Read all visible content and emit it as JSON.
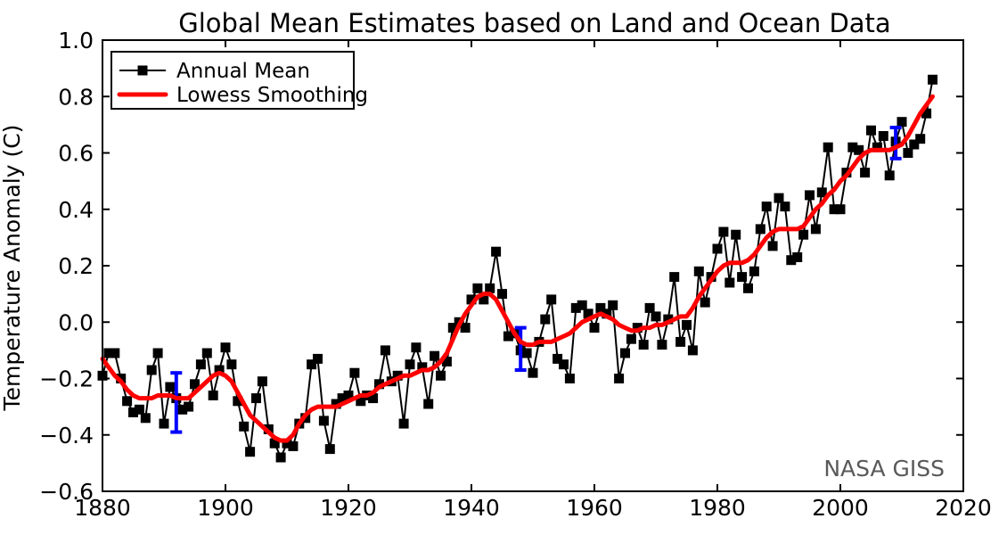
{
  "title": "Global Mean Estimates based on Land and Ocean Data",
  "ylabel": "Temperature Anomaly (C)",
  "watermark": "NASA GISS",
  "legend": {
    "position": "upper left",
    "items": [
      {
        "label": "Annual Mean",
        "swatch": "black line with square marker",
        "color": "#000000"
      },
      {
        "label": "Lowess Smoothing",
        "swatch": "thick red line",
        "color": "#ff0000"
      }
    ]
  },
  "colors": {
    "annual": "#000000",
    "lowess": "#ff0000",
    "error_bar": "#0000ff",
    "watermark_text": "#595959",
    "background": "#ffffff"
  },
  "chart_data": {
    "type": "line",
    "title": "Global Mean Estimates based on Land and Ocean Data",
    "xlabel": "",
    "ylabel": "Temperature Anomaly (C)",
    "xlim": [
      1880,
      2020
    ],
    "ylim": [
      -0.6,
      1.0
    ],
    "grid": false,
    "legend_position": "upper left",
    "xticks": [
      1880,
      1900,
      1920,
      1940,
      1960,
      1980,
      2000,
      2020
    ],
    "xtick_labels": [
      "1880",
      "1900",
      "1920",
      "1940",
      "1960",
      "1980",
      "2000",
      "2020"
    ],
    "yticks": [
      -0.6,
      -0.4,
      -0.2,
      0.0,
      0.2,
      0.4,
      0.6,
      0.8,
      1.0
    ],
    "ytick_labels": [
      "−0.6",
      "−0.4",
      "−0.2",
      "0.0",
      "0.2",
      "0.4",
      "0.6",
      "0.8",
      "1.0"
    ],
    "x_first_year": 1880,
    "x_last_year": 2015,
    "x_step": 1,
    "series": [
      {
        "name": "Annual Mean",
        "style": "black line with square markers",
        "color": "#000000",
        "values": [
          -0.19,
          -0.11,
          -0.11,
          -0.2,
          -0.28,
          -0.32,
          -0.31,
          -0.34,
          -0.17,
          -0.11,
          -0.36,
          -0.23,
          -0.27,
          -0.31,
          -0.3,
          -0.22,
          -0.15,
          -0.11,
          -0.26,
          -0.17,
          -0.09,
          -0.15,
          -0.28,
          -0.37,
          -0.46,
          -0.27,
          -0.21,
          -0.38,
          -0.43,
          -0.48,
          -0.43,
          -0.44,
          -0.36,
          -0.34,
          -0.15,
          -0.13,
          -0.35,
          -0.45,
          -0.29,
          -0.27,
          -0.26,
          -0.18,
          -0.28,
          -0.26,
          -0.27,
          -0.22,
          -0.1,
          -0.21,
          -0.19,
          -0.36,
          -0.15,
          -0.09,
          -0.16,
          -0.29,
          -0.12,
          -0.19,
          -0.14,
          -0.02,
          0.0,
          -0.02,
          0.08,
          0.12,
          0.08,
          0.12,
          0.25,
          0.1,
          -0.05,
          -0.04,
          -0.1,
          -0.11,
          -0.18,
          -0.07,
          0.01,
          0.08,
          -0.13,
          -0.15,
          -0.2,
          0.05,
          0.06,
          0.03,
          -0.02,
          0.05,
          0.03,
          0.06,
          -0.2,
          -0.11,
          -0.06,
          -0.02,
          -0.08,
          0.05,
          0.02,
          -0.08,
          0.01,
          0.16,
          -0.07,
          -0.01,
          -0.1,
          0.18,
          0.07,
          0.16,
          0.26,
          0.32,
          0.14,
          0.31,
          0.16,
          0.12,
          0.18,
          0.33,
          0.41,
          0.27,
          0.44,
          0.41,
          0.22,
          0.23,
          0.31,
          0.45,
          0.33,
          0.46,
          0.62,
          0.4,
          0.4,
          0.53,
          0.62,
          0.61,
          0.53,
          0.68,
          0.62,
          0.66,
          0.52,
          0.64,
          0.71,
          0.6,
          0.63,
          0.65,
          0.74,
          0.86
        ]
      },
      {
        "name": "Lowess Smoothing",
        "style": "thick red smooth line",
        "color": "#ff0000",
        "values": [
          -0.13,
          -0.16,
          -0.19,
          -0.21,
          -0.24,
          -0.26,
          -0.27,
          -0.27,
          -0.27,
          -0.26,
          -0.26,
          -0.26,
          -0.27,
          -0.27,
          -0.27,
          -0.25,
          -0.23,
          -0.21,
          -0.19,
          -0.18,
          -0.19,
          -0.21,
          -0.25,
          -0.29,
          -0.33,
          -0.35,
          -0.37,
          -0.39,
          -0.41,
          -0.42,
          -0.42,
          -0.4,
          -0.36,
          -0.33,
          -0.31,
          -0.3,
          -0.3,
          -0.3,
          -0.3,
          -0.29,
          -0.28,
          -0.27,
          -0.26,
          -0.26,
          -0.25,
          -0.23,
          -0.22,
          -0.21,
          -0.2,
          -0.19,
          -0.19,
          -0.18,
          -0.17,
          -0.17,
          -0.16,
          -0.14,
          -0.11,
          -0.06,
          -0.01,
          0.03,
          0.06,
          0.09,
          0.1,
          0.1,
          0.08,
          0.04,
          0.0,
          -0.04,
          -0.07,
          -0.08,
          -0.08,
          -0.07,
          -0.07,
          -0.07,
          -0.06,
          -0.05,
          -0.04,
          -0.02,
          0.0,
          0.01,
          0.02,
          0.03,
          0.02,
          0.01,
          -0.01,
          -0.02,
          -0.03,
          -0.03,
          -0.02,
          -0.02,
          -0.01,
          -0.01,
          0.0,
          0.01,
          0.02,
          0.02,
          0.05,
          0.09,
          0.12,
          0.15,
          0.18,
          0.2,
          0.21,
          0.21,
          0.21,
          0.22,
          0.24,
          0.27,
          0.3,
          0.32,
          0.33,
          0.33,
          0.33,
          0.33,
          0.34,
          0.37,
          0.4,
          0.42,
          0.45,
          0.47,
          0.5,
          0.52,
          0.55,
          0.58,
          0.6,
          0.61,
          0.61,
          0.61,
          0.61,
          0.62,
          0.63,
          0.66,
          0.7,
          0.74,
          0.77,
          0.8
        ]
      }
    ],
    "error_bars": {
      "color": "#0000ff",
      "points": [
        {
          "year": 1892,
          "low": -0.39,
          "high": -0.18
        },
        {
          "year": 1948,
          "low": -0.17,
          "high": -0.02
        },
        {
          "year": 2009,
          "low": 0.58,
          "high": 0.69
        }
      ]
    },
    "annotations": [
      {
        "text": "NASA GISS",
        "position": "lower right inside axes",
        "color": "#595959"
      }
    ]
  }
}
